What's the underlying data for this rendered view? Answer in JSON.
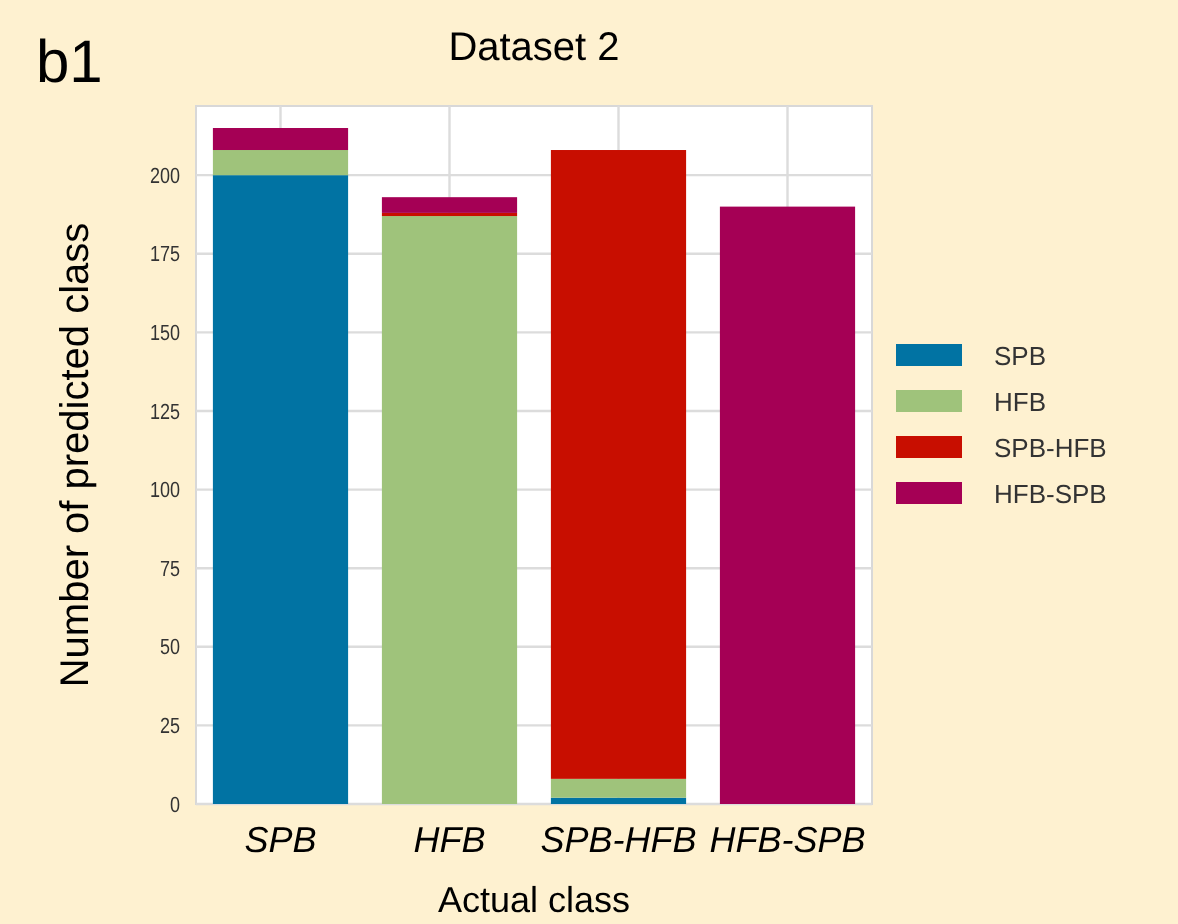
{
  "chart_data": {
    "type": "bar",
    "title": "Dataset 2",
    "xlabel": "Actual class",
    "ylabel": "Number of predicted class",
    "annotations": [
      "b1"
    ],
    "categories": [
      "SPB",
      "HFB",
      "SPB-HFB",
      "HFB-SPB"
    ],
    "series": [
      {
        "name": "SPB",
        "color": "#0173a3",
        "values": [
          200,
          0,
          2,
          0
        ]
      },
      {
        "name": "HFB",
        "color": "#9fc37b",
        "values": [
          8,
          187,
          6,
          0
        ]
      },
      {
        "name": "SPB-HFB",
        "color": "#c80e00",
        "values": [
          0,
          1,
          200,
          0
        ]
      },
      {
        "name": "HFB-SPB",
        "color": "#a50055",
        "values": [
          7,
          5,
          0,
          190
        ]
      }
    ],
    "stacked": true,
    "ylim": [
      0,
      222
    ],
    "yticks": [
      0,
      25,
      50,
      75,
      100,
      125,
      150,
      175,
      200
    ],
    "grid": true,
    "legend": "right"
  }
}
